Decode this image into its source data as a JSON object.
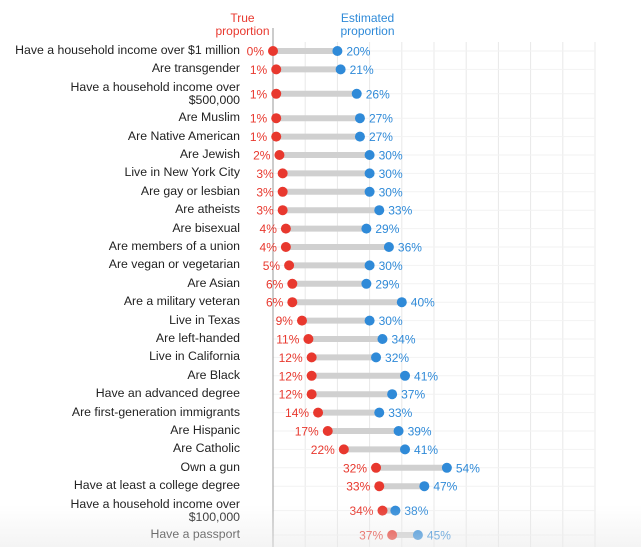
{
  "chart_data": {
    "type": "dumbbell",
    "title": "",
    "legend": {
      "true_label": "True proportion",
      "estimated_label": "Estimated proportion",
      "placement": "top"
    },
    "xlim": [
      0,
      100
    ],
    "grid": true,
    "unit": "%",
    "colors": {
      "true": "#e8382e",
      "estimated": "#2f8ad8",
      "connector": "#d0d0d0",
      "grid": "#e8e8e8",
      "axis": "#999999"
    },
    "rows": [
      {
        "label": "Have a household income over $1 million",
        "true": 0,
        "estimated": 20
      },
      {
        "label": "Are transgender",
        "true": 1,
        "estimated": 21
      },
      {
        "label": "Have a household income over $500,000",
        "lines": [
          "Have a household income over",
          "$500,000"
        ],
        "true": 1,
        "estimated": 26
      },
      {
        "label": "Are Muslim",
        "true": 1,
        "estimated": 27
      },
      {
        "label": "Are Native American",
        "true": 1,
        "estimated": 27
      },
      {
        "label": "Are Jewish",
        "true": 2,
        "estimated": 30
      },
      {
        "label": "Live in New York City",
        "true": 3,
        "estimated": 30
      },
      {
        "label": "Are gay or lesbian",
        "true": 3,
        "estimated": 30
      },
      {
        "label": "Are atheists",
        "true": 3,
        "estimated": 33
      },
      {
        "label": "Are bisexual",
        "true": 4,
        "estimated": 29
      },
      {
        "label": "Are members of a union",
        "true": 4,
        "estimated": 36
      },
      {
        "label": "Are vegan or vegetarian",
        "true": 5,
        "estimated": 30
      },
      {
        "label": "Are Asian",
        "true": 6,
        "estimated": 29
      },
      {
        "label": "Are a military veteran",
        "true": 6,
        "estimated": 40
      },
      {
        "label": "Live in Texas",
        "true": 9,
        "estimated": 30
      },
      {
        "label": "Are left-handed",
        "true": 11,
        "estimated": 34
      },
      {
        "label": "Live in California",
        "true": 12,
        "estimated": 32
      },
      {
        "label": "Are Black",
        "true": 12,
        "estimated": 41
      },
      {
        "label": "Have an advanced degree",
        "true": 12,
        "estimated": 37
      },
      {
        "label": "Are first-generation immigrants",
        "true": 14,
        "estimated": 33
      },
      {
        "label": "Are Hispanic",
        "true": 17,
        "estimated": 39
      },
      {
        "label": "Are Catholic",
        "true": 22,
        "estimated": 41
      },
      {
        "label": "Own a gun",
        "true": 32,
        "estimated": 54
      },
      {
        "label": "Have at least a college degree",
        "true": 33,
        "estimated": 47
      },
      {
        "label": "Have a household income over $100,000",
        "lines": [
          "Have a household income over",
          "$100,000"
        ],
        "true": 34,
        "estimated": 38
      },
      {
        "label": "Have a passport",
        "true": 37,
        "estimated": 45
      }
    ]
  }
}
